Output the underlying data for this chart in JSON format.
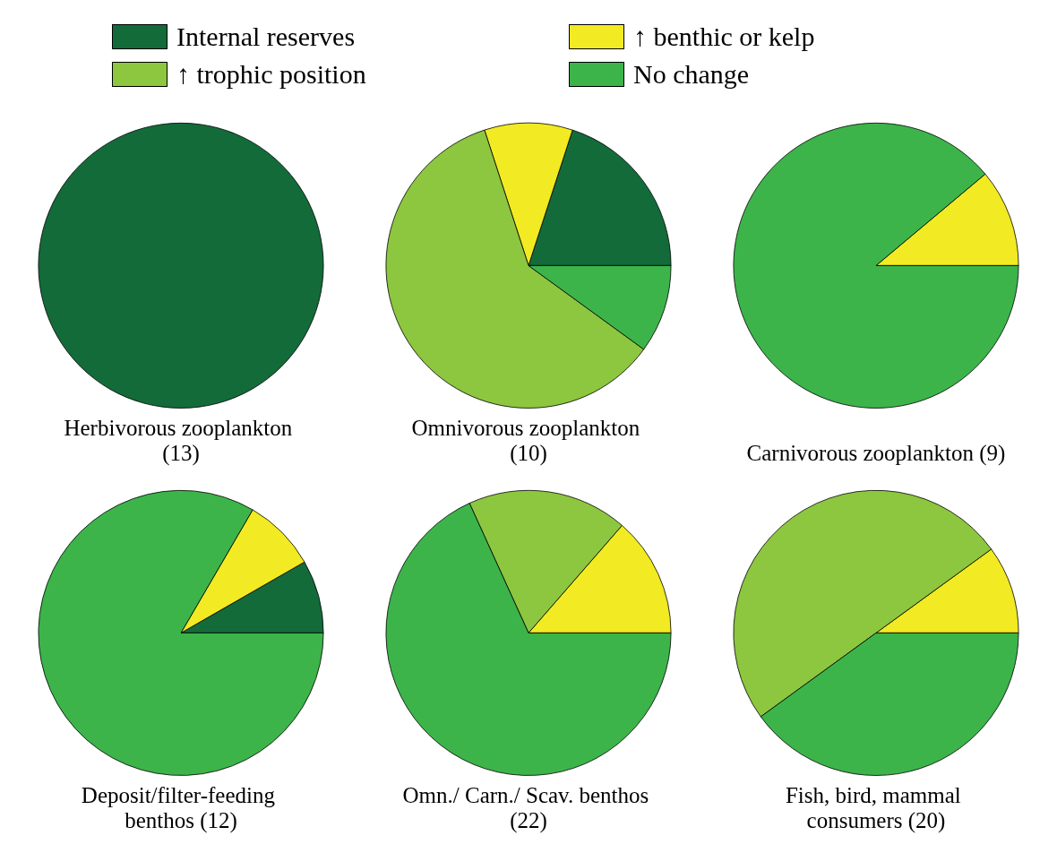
{
  "chart_data": [
    {
      "type": "pie",
      "title": "Herbivorous zooplankton (13)",
      "categories": [
        null
      ],
      "values": [
        100
      ],
      "colors": [
        "#136b3a"
      ]
    },
    {
      "type": "pie",
      "title": "Omnivorous zooplankton (10)",
      "legend": "top",
      "categories": [
        "Internal reserves",
        "↑ benthic or kelp",
        "↑ trophic position",
        "No change"
      ],
      "values": [
        20,
        10,
        60,
        10
      ],
      "colors": [
        "#136b3a",
        "#f2ea22",
        "#8dc63f",
        "#3cb44a"
      ]
    },
    {
      "type": "pie",
      "title": "Carnivorous zooplankton (9)",
      "categories": [
        null,
        null
      ],
      "values": [
        11.1,
        88.9
      ],
      "colors": [
        "#f2ea22",
        "#3cb44a"
      ]
    },
    {
      "type": "pie",
      "title": "Deposit/filter-feeding benthos (12)",
      "categories": [
        null,
        null,
        null
      ],
      "values": [
        8.3,
        8.3,
        83.4
      ],
      "colors": [
        "#136b3a",
        "#f2ea22",
        "#3cb44a"
      ]
    },
    {
      "type": "pie",
      "title": "Omn./ Carn./ Scav. benthos (22)",
      "categories": [
        null,
        null,
        null
      ],
      "values": [
        13.6,
        18.2,
        68.2
      ],
      "colors": [
        "#f2ea22",
        "#8dc63f",
        "#3cb44a"
      ]
    },
    {
      "type": "pie",
      "title": "Fish, bird, mammal consumers (20)",
      "categories": [
        null,
        null,
        null
      ],
      "values": [
        10,
        50,
        40
      ],
      "colors": [
        "#f2ea22",
        "#8dc63f",
        "#3cb44a"
      ]
    }
  ]
}
